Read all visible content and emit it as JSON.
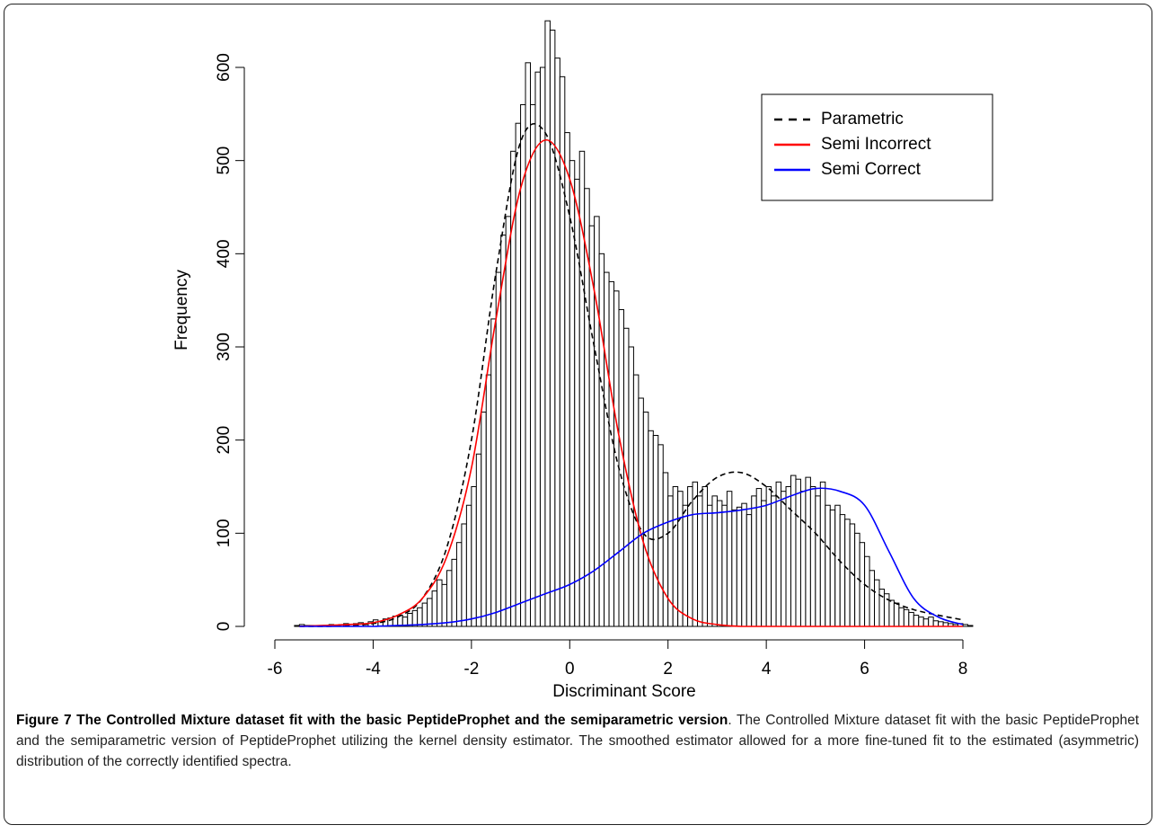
{
  "chart_data": {
    "type": "histogram",
    "xlabel": "Discriminant Score",
    "ylabel": "Frequency",
    "bins": [
      -5.6,
      -5.5,
      -5.4,
      -5.3,
      -5.2,
      -5.1,
      -5.0,
      -4.9,
      -4.8,
      -4.7,
      -4.6,
      -4.5,
      -4.4,
      -4.3,
      -4.2,
      -4.1,
      -4.0,
      -3.9,
      -3.8,
      -3.7,
      -3.6,
      -3.5,
      -3.4,
      -3.3,
      -3.2,
      -3.1,
      -3.0,
      -2.9,
      -2.8,
      -2.7,
      -2.6,
      -2.5,
      -2.4,
      -2.3,
      -2.2,
      -2.1,
      -2.0,
      -1.9,
      -1.8,
      -1.7,
      -1.6,
      -1.5,
      -1.4,
      -1.3,
      -1.2,
      -1.1,
      -1.0,
      -0.9,
      -0.8,
      -0.7,
      -0.6,
      -0.5,
      -0.4,
      -0.3,
      -0.2,
      -0.1,
      0.0,
      0.1,
      0.2,
      0.3,
      0.4,
      0.5,
      0.6,
      0.7,
      0.8,
      0.9,
      1.0,
      1.1,
      1.2,
      1.3,
      1.4,
      1.5,
      1.6,
      1.7,
      1.8,
      1.9,
      2.0,
      2.1,
      2.2,
      2.3,
      2.4,
      2.5,
      2.6,
      2.7,
      2.8,
      2.9,
      3.0,
      3.1,
      3.2,
      3.3,
      3.4,
      3.5,
      3.6,
      3.7,
      3.8,
      3.9,
      4.0,
      4.1,
      4.2,
      4.3,
      4.4,
      4.5,
      4.6,
      4.7,
      4.8,
      4.9,
      5.0,
      5.1,
      5.2,
      5.3,
      5.4,
      5.5,
      5.6,
      5.7,
      5.8,
      5.9,
      6.0,
      6.1,
      6.2,
      6.3,
      6.4,
      6.5,
      6.6,
      6.7,
      6.8,
      6.9,
      7.0,
      7.1,
      7.2,
      7.3,
      7.4,
      7.5,
      7.6,
      7.7,
      7.8,
      7.9,
      8.0,
      8.1,
      8.2
    ],
    "values": [
      1,
      2,
      1,
      1,
      0,
      1,
      1,
      2,
      1,
      2,
      3,
      2,
      3,
      4,
      3,
      5,
      7,
      5,
      8,
      9,
      11,
      12,
      10,
      14,
      17,
      20,
      25,
      30,
      38,
      50,
      45,
      60,
      72,
      90,
      110,
      130,
      150,
      185,
      230,
      270,
      330,
      380,
      420,
      440,
      510,
      540,
      560,
      605,
      560,
      595,
      600,
      650,
      640,
      610,
      590,
      530,
      500,
      480,
      510,
      470,
      430,
      440,
      400,
      380,
      370,
      360,
      340,
      320,
      300,
      270,
      245,
      230,
      210,
      205,
      195,
      165,
      140,
      150,
      145,
      130,
      150,
      155,
      140,
      150,
      130,
      140,
      135,
      130,
      145,
      125,
      128,
      132,
      120,
      140,
      148,
      135,
      150,
      140,
      155,
      145,
      150,
      162,
      158,
      145,
      160,
      150,
      140,
      155,
      130,
      125,
      130,
      120,
      115,
      110,
      100,
      90,
      75,
      60,
      50,
      40,
      35,
      28,
      25,
      20,
      18,
      15,
      12,
      10,
      8,
      10,
      6,
      5,
      4,
      3,
      2,
      3,
      2,
      1
    ],
    "color": "#ffffff",
    "curves": {
      "x": [
        -5.5,
        -5,
        -4.5,
        -4,
        -3.5,
        -3,
        -2.5,
        -2,
        -1.5,
        -1,
        -0.5,
        0,
        0.5,
        1,
        1.5,
        2,
        2.5,
        3,
        3.5,
        4,
        4.5,
        5,
        5.5,
        6,
        6.5,
        7,
        7.5,
        8
      ],
      "series": [
        {
          "name": "Parametric",
          "color": "#000000",
          "dashed": true,
          "values": [
            0,
            0,
            1,
            3,
            10,
            30,
            85,
            200,
            380,
            520,
            530,
            440,
            300,
            170,
            100,
            100,
            135,
            160,
            165,
            150,
            125,
            100,
            70,
            45,
            28,
            18,
            12,
            7
          ]
        },
        {
          "name": "Semi Incorrect",
          "color": "#ff0000",
          "dashed": false,
          "values": [
            0,
            1,
            2,
            4,
            12,
            30,
            75,
            170,
            330,
            470,
            522,
            480,
            360,
            205,
            90,
            30,
            8,
            2,
            0,
            0,
            0,
            0,
            0,
            0,
            0,
            0,
            0,
            0
          ]
        },
        {
          "name": "Semi Correct",
          "color": "#0000ff",
          "dashed": false,
          "values": [
            0,
            0,
            0,
            0,
            1,
            2,
            4,
            8,
            15,
            25,
            35,
            45,
            60,
            80,
            100,
            112,
            120,
            122,
            125,
            130,
            140,
            148,
            145,
            130,
            80,
            30,
            10,
            2
          ]
        }
      ]
    },
    "xlim": [
      -6,
      8
    ],
    "xticks": [
      -6,
      -4,
      -2,
      0,
      2,
      4,
      6,
      8
    ],
    "ylim": [
      0,
      600
    ],
    "yticks": [
      0,
      100,
      200,
      300,
      400,
      500,
      600
    ],
    "legend": "top-right"
  },
  "caption": {
    "title": "Figure 7 The Controlled Mixture dataset fit with the basic PeptideProphet and the semiparametric version",
    "text": ". The Controlled Mixture dataset fit with the basic PeptideProphet and the semiparametric version of PeptideProphet utilizing the kernel density estimator. The smoothed estimator allowed for a more fine-tuned fit to the estimated (asymmetric) distribution of the correctly identified spectra."
  }
}
